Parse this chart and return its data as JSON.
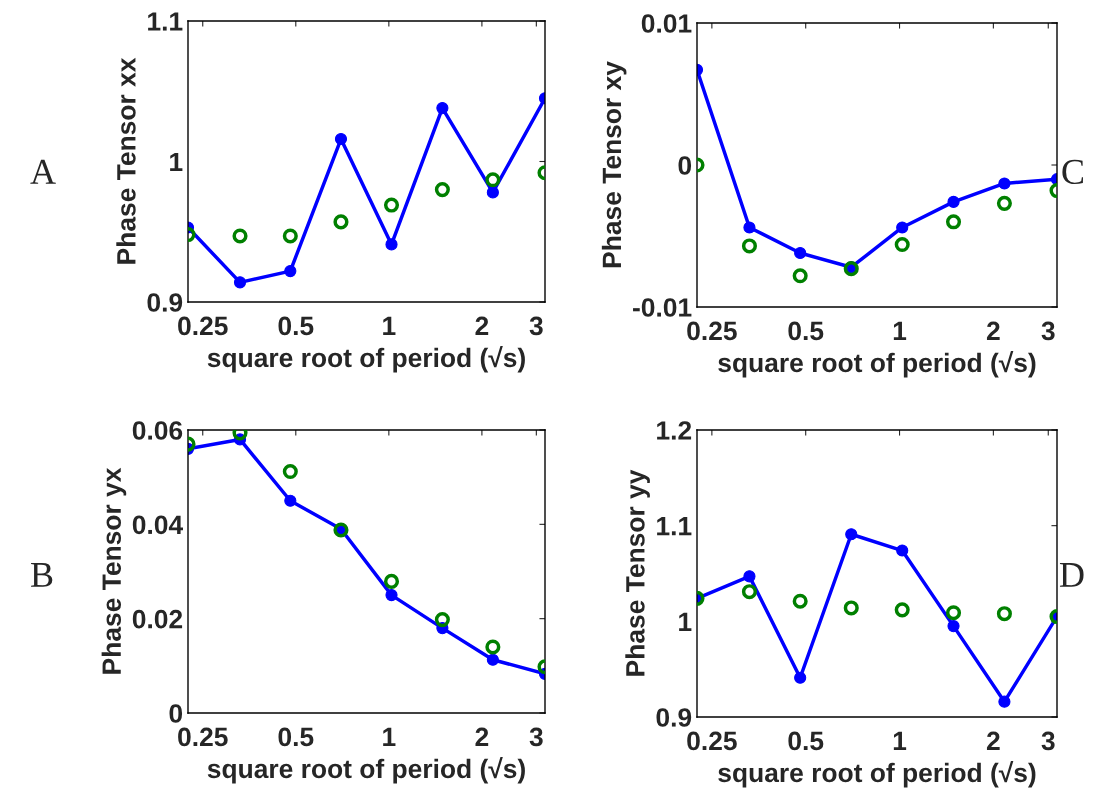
{
  "chart_data": [
    {
      "type": "line",
      "xlabel": "square root of period (√s)",
      "ylabel": "Phase Tensor xx",
      "annotations": [
        "A"
      ],
      "x": [
        0.224,
        0.33,
        0.48,
        0.7,
        1.02,
        1.49,
        2.17,
        3.2
      ],
      "log": "x",
      "xlim": [
        0.224,
        3.2
      ],
      "xticks": [
        0.25,
        0.5,
        1,
        2,
        3
      ],
      "ylim": [
        0.9,
        1.1
      ],
      "yticks": [
        0.9,
        1,
        1.1
      ],
      "series": [
        {
          "color": "#0000ff",
          "marker": "circle",
          "values": [
            0.953,
            0.914,
            0.922,
            1.016,
            0.941,
            1.038,
            0.978,
            1.045
          ]
        },
        {
          "type": "scatter",
          "color": "#008000",
          "marker": "circle",
          "values": [
            0.948,
            0.947,
            0.947,
            0.957,
            0.969,
            0.98,
            0.987,
            0.992
          ]
        }
      ]
    },
    {
      "type": "line",
      "xlabel": "square root of period (√s)",
      "ylabel": "Phase Tensor xy",
      "annotations": [
        "C"
      ],
      "x": [
        0.224,
        0.33,
        0.48,
        0.7,
        1.02,
        1.49,
        2.17,
        3.2
      ],
      "log": "x",
      "xlim": [
        0.224,
        3.2
      ],
      "xticks": [
        0.25,
        0.5,
        1,
        2,
        3
      ],
      "ylim": [
        -0.01,
        0.01
      ],
      "yticks": [
        -0.01,
        0,
        0.01
      ],
      "series": [
        {
          "color": "#0000ff",
          "marker": "circle",
          "values": [
            0.0067,
            -0.0044,
            -0.0062,
            -0.0072,
            -0.0044,
            -0.0026,
            -0.0013,
            -0.001
          ]
        },
        {
          "type": "scatter",
          "color": "#008000",
          "marker": "circle",
          "values": [
            0.0,
            -0.0057,
            -0.0078,
            -0.0073,
            -0.0056,
            -0.004,
            -0.0027,
            -0.0018
          ]
        }
      ]
    },
    {
      "type": "line",
      "xlabel": "square root of period (√s)",
      "ylabel": "Phase Tensor yx",
      "annotations": [
        "B"
      ],
      "x": [
        0.224,
        0.33,
        0.48,
        0.7,
        1.02,
        1.49,
        2.17,
        3.2
      ],
      "log": "x",
      "xlim": [
        0.224,
        3.2
      ],
      "xticks": [
        0.25,
        0.5,
        1,
        2,
        3
      ],
      "ylim": [
        0,
        0.06
      ],
      "yticks": [
        0,
        0.02,
        0.04,
        0.06
      ],
      "series": [
        {
          "color": "#0000ff",
          "marker": "circle",
          "values": [
            0.056,
            0.058,
            0.045,
            0.039,
            0.025,
            0.018,
            0.0113,
            0.0083
          ]
        },
        {
          "type": "scatter",
          "color": "#008000",
          "marker": "circle",
          "values": [
            0.057,
            0.0594,
            0.0512,
            0.0388,
            0.0279,
            0.0198,
            0.014,
            0.0098
          ]
        }
      ]
    },
    {
      "type": "line",
      "xlabel": "square root of period (√s)",
      "ylabel": "Phase Tensor yy",
      "annotations": [
        "D"
      ],
      "x": [
        0.224,
        0.33,
        0.48,
        0.7,
        1.02,
        1.49,
        2.17,
        3.2
      ],
      "log": "x",
      "xlim": [
        0.224,
        3.2
      ],
      "xticks": [
        0.25,
        0.5,
        1,
        2,
        3
      ],
      "ylim": [
        0.9,
        1.2
      ],
      "yticks": [
        0.9,
        1,
        1.1,
        1.2
      ],
      "series": [
        {
          "color": "#0000ff",
          "marker": "circle",
          "values": [
            1.024,
            1.047,
            0.941,
            1.091,
            1.074,
            0.995,
            0.916,
            1.005
          ]
        },
        {
          "type": "scatter",
          "color": "#008000",
          "marker": "circle",
          "values": [
            1.024,
            1.031,
            1.021,
            1.014,
            1.012,
            1.009,
            1.008,
            1.005
          ]
        }
      ]
    }
  ]
}
